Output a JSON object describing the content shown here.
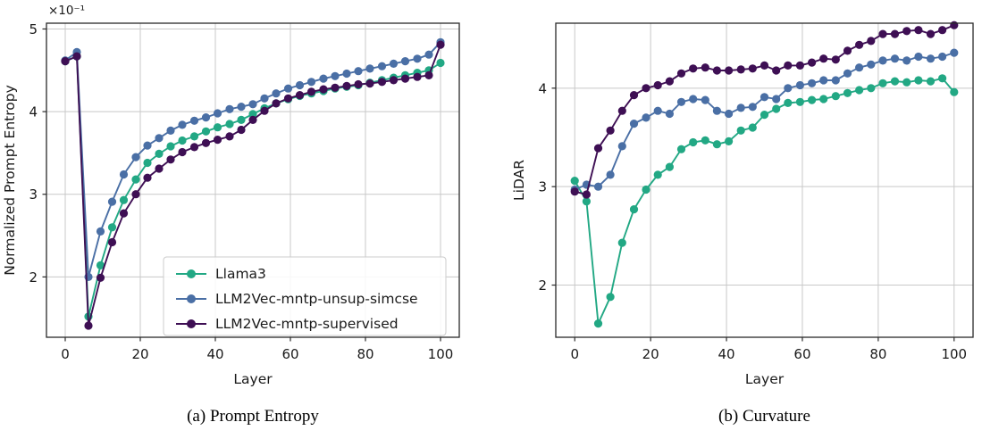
{
  "figure": {
    "caption_a": "(a) Prompt Entropy",
    "caption_b": "(b) Curvature"
  },
  "colors": {
    "llama3": "#22a884",
    "unsup_simcse": "#4a6fa5",
    "supervised": "#3e0f54",
    "grid": "#c8c8c8",
    "spine": "#2a2a2a",
    "legend_edge": "#cccccc"
  },
  "chart_data": [
    {
      "type": "line",
      "xlabel": "Layer",
      "ylabel": "Normalized Prompt Entropy",
      "y_offset_text": "×10⁻¹",
      "xlim": [
        -5,
        105
      ],
      "ylim": [
        1.27,
        5.07
      ],
      "xticks": [
        0,
        20,
        40,
        60,
        80,
        100
      ],
      "yticks": [
        2,
        3,
        4,
        5
      ],
      "grid": true,
      "legend": true,
      "legend_loc": "lower right",
      "caption": "(a) Prompt Entropy",
      "x": [
        0,
        3.1,
        6.2,
        9.4,
        12.5,
        15.6,
        18.8,
        21.9,
        25,
        28.1,
        31.2,
        34.4,
        37.5,
        40.6,
        43.8,
        46.9,
        50,
        53.1,
        56.2,
        59.4,
        62.5,
        65.6,
        68.8,
        71.9,
        75,
        78.1,
        81.2,
        84.4,
        87.5,
        90.6,
        93.8,
        96.9,
        100
      ],
      "series": [
        {
          "name": "Llama3",
          "color": "#22a884",
          "values": [
            4.61,
            4.67,
            1.52,
            2.14,
            2.6,
            2.93,
            3.18,
            3.38,
            3.49,
            3.58,
            3.65,
            3.7,
            3.76,
            3.81,
            3.85,
            3.9,
            3.97,
            4.04,
            4.1,
            4.15,
            4.19,
            4.22,
            4.25,
            4.28,
            4.3,
            4.32,
            4.35,
            4.38,
            4.41,
            4.44,
            4.47,
            4.5,
            4.59
          ]
        },
        {
          "name": "LLM2Vec-mntp-unsup-simcse",
          "color": "#4a6fa5",
          "values": [
            4.62,
            4.72,
            2.0,
            2.55,
            2.91,
            3.24,
            3.45,
            3.59,
            3.68,
            3.77,
            3.84,
            3.89,
            3.93,
            3.98,
            4.03,
            4.06,
            4.09,
            4.16,
            4.22,
            4.28,
            4.32,
            4.36,
            4.4,
            4.43,
            4.46,
            4.49,
            4.52,
            4.55,
            4.58,
            4.61,
            4.64,
            4.69,
            4.84
          ]
        },
        {
          "name": "LLM2Vec-mntp-supervised",
          "color": "#3e0f54",
          "values": [
            4.61,
            4.67,
            1.41,
            1.99,
            2.42,
            2.77,
            3.0,
            3.2,
            3.31,
            3.42,
            3.51,
            3.57,
            3.62,
            3.66,
            3.7,
            3.78,
            3.9,
            4.01,
            4.1,
            4.16,
            4.2,
            4.24,
            4.27,
            4.29,
            4.31,
            4.33,
            4.34,
            4.36,
            4.38,
            4.4,
            4.42,
            4.44,
            4.81
          ]
        }
      ]
    },
    {
      "type": "line",
      "xlabel": "Layer",
      "ylabel": "LiDAR",
      "y_offset_text": "",
      "xlim": [
        -5,
        105
      ],
      "ylim": [
        1.47,
        4.66
      ],
      "xticks": [
        0,
        20,
        40,
        60,
        80,
        100
      ],
      "yticks": [
        2,
        3,
        4
      ],
      "grid": true,
      "legend": false,
      "caption": "(b) Curvature",
      "x": [
        0,
        3.1,
        6.2,
        9.4,
        12.5,
        15.6,
        18.8,
        21.9,
        25,
        28.1,
        31.2,
        34.4,
        37.5,
        40.6,
        43.8,
        46.9,
        50,
        53.1,
        56.2,
        59.4,
        62.5,
        65.6,
        68.8,
        71.9,
        75,
        78.1,
        81.2,
        84.4,
        87.5,
        90.6,
        93.8,
        96.9,
        100
      ],
      "series": [
        {
          "name": "Llama3",
          "color": "#22a884",
          "values": [
            3.06,
            2.85,
            1.61,
            1.88,
            2.43,
            2.77,
            2.97,
            3.12,
            3.2,
            3.38,
            3.45,
            3.47,
            3.43,
            3.46,
            3.57,
            3.6,
            3.73,
            3.79,
            3.85,
            3.86,
            3.88,
            3.89,
            3.92,
            3.95,
            3.98,
            4.0,
            4.05,
            4.07,
            4.06,
            4.08,
            4.07,
            4.1,
            3.96
          ]
        },
        {
          "name": "LLM2Vec-mntp-unsup-simcse",
          "color": "#4a6fa5",
          "values": [
            2.97,
            3.02,
            3.0,
            3.12,
            3.41,
            3.64,
            3.7,
            3.77,
            3.74,
            3.86,
            3.89,
            3.88,
            3.77,
            3.74,
            3.8,
            3.81,
            3.91,
            3.89,
            4.0,
            4.03,
            4.05,
            4.08,
            4.08,
            4.15,
            4.21,
            4.24,
            4.28,
            4.3,
            4.28,
            4.32,
            4.3,
            4.32,
            4.36
          ]
        },
        {
          "name": "LLM2Vec-mntp-supervised",
          "color": "#3e0f54",
          "values": [
            2.95,
            2.92,
            3.39,
            3.57,
            3.77,
            3.93,
            4.0,
            4.03,
            4.07,
            4.15,
            4.2,
            4.21,
            4.18,
            4.18,
            4.19,
            4.2,
            4.23,
            4.18,
            4.23,
            4.23,
            4.26,
            4.3,
            4.29,
            4.38,
            4.44,
            4.48,
            4.55,
            4.55,
            4.58,
            4.59,
            4.55,
            4.59,
            4.64
          ]
        }
      ]
    }
  ]
}
